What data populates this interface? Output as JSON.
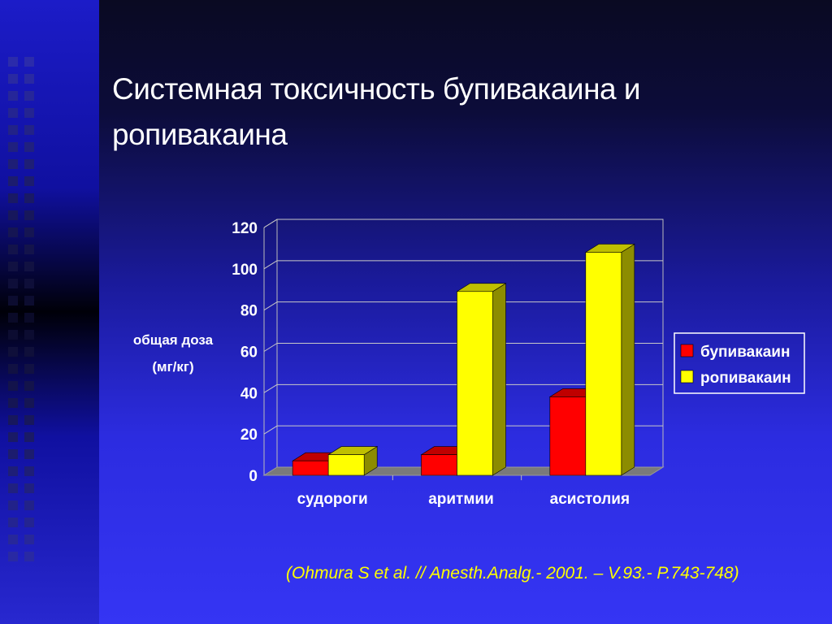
{
  "slide": {
    "title": "Системная токсичность бупивакаина и ропивакаина",
    "citation": "(Ohmura S et al. // Anesth.Analg.- 2001. – V.93.- P.743-748)"
  },
  "colors": {
    "background": "#2c2ce0",
    "bupivacaine": "#ff0000",
    "ropivacaine": "#ffff00"
  },
  "chart_data": {
    "type": "bar",
    "style": "3d-clustered",
    "categories": [
      "судороги",
      "аритмии",
      "асистолия"
    ],
    "series": [
      {
        "name": "бупивакаин",
        "values": [
          7,
          10,
          38
        ]
      },
      {
        "name": "ропивакаин",
        "values": [
          10,
          89,
          108
        ]
      }
    ],
    "ylabel_lines": [
      "общая доза",
      "(мг/кг)"
    ],
    "yticks": [
      0,
      20,
      40,
      60,
      80,
      100,
      120
    ],
    "ylim": [
      0,
      120
    ],
    "grid": true,
    "legend_position": "right"
  }
}
